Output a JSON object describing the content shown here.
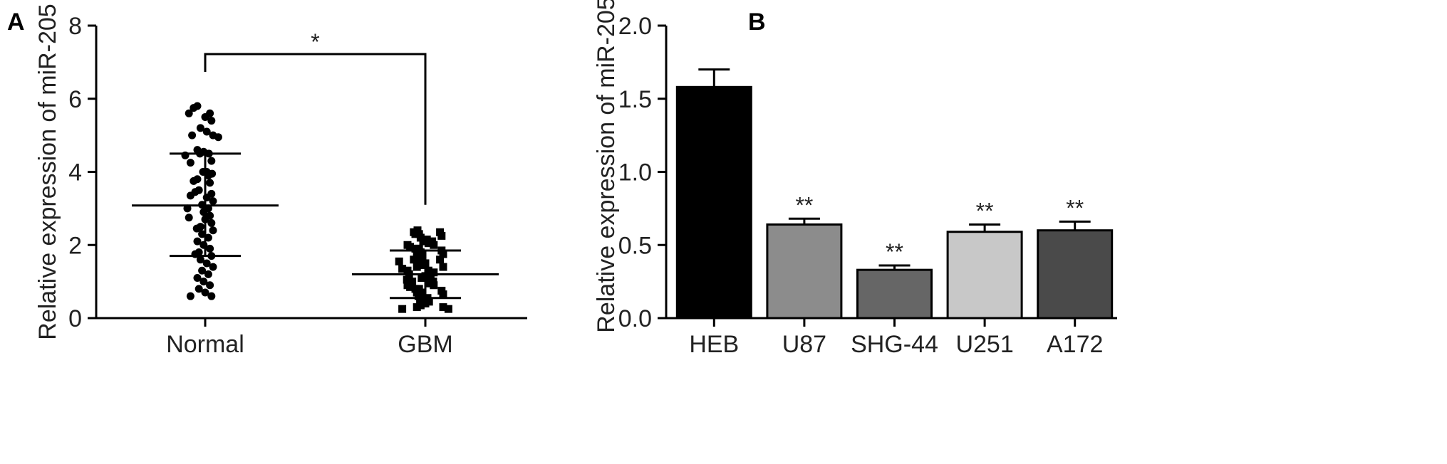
{
  "chart_data": [
    {
      "panel": "A",
      "type": "scatter",
      "ylabel": "Relative expression of miR-205",
      "ylim": [
        0,
        8
      ],
      "yticks": [
        "0",
        "2",
        "4",
        "6",
        "8"
      ],
      "categories": [
        "Normal",
        "GBM"
      ],
      "marker_shapes": [
        "circle",
        "square"
      ],
      "groups": [
        {
          "category": "Normal",
          "mean": 3.08,
          "sd_low": 1.7,
          "sd_high": 4.5,
          "points": [
            5.8,
            5.75,
            5.6,
            5.6,
            5.5,
            5.4,
            5.2,
            5.1,
            5.0,
            5.0,
            4.95,
            4.6,
            4.55,
            4.5,
            4.5,
            4.45,
            4.3,
            4.25,
            4.0,
            4.0,
            3.95,
            3.9,
            3.8,
            3.75,
            3.7,
            3.5,
            3.45,
            3.4,
            3.35,
            3.3,
            3.2,
            3.1,
            3.0,
            3.0,
            2.9,
            2.8,
            2.75,
            2.7,
            2.6,
            2.5,
            2.45,
            2.4,
            2.3,
            2.2,
            2.1,
            2.0,
            1.9,
            1.8,
            1.75,
            1.7,
            1.6,
            1.5,
            1.4,
            1.3,
            1.2,
            1.1,
            1.0,
            0.9,
            0.8,
            0.7,
            0.6,
            0.6
          ]
        },
        {
          "category": "GBM",
          "mean": 1.2,
          "sd_low": 0.55,
          "sd_high": 1.85,
          "points": [
            2.4,
            2.35,
            2.35,
            2.3,
            2.3,
            2.25,
            2.2,
            2.15,
            2.1,
            2.1,
            2.05,
            2.0,
            2.0,
            1.95,
            1.9,
            1.9,
            1.85,
            1.8,
            1.8,
            1.75,
            1.7,
            1.7,
            1.65,
            1.6,
            1.6,
            1.55,
            1.5,
            1.5,
            1.45,
            1.4,
            1.4,
            1.35,
            1.3,
            1.3,
            1.25,
            1.2,
            1.2,
            1.15,
            1.1,
            1.1,
            1.05,
            1.0,
            1.0,
            0.95,
            0.9,
            0.9,
            0.85,
            0.8,
            0.8,
            0.75,
            0.7,
            0.7,
            0.65,
            0.6,
            0.6,
            0.55,
            0.5,
            0.5,
            0.45,
            0.4,
            0.4,
            0.35,
            0.3,
            0.3,
            0.25,
            0.25
          ]
        }
      ],
      "annotations": [
        {
          "text": "*",
          "between": [
            "Normal",
            "GBM"
          ]
        }
      ]
    },
    {
      "panel": "B",
      "type": "bar",
      "ylabel": "Relative expression of miR-205",
      "ylim": [
        0,
        2.0
      ],
      "yticks": [
        "0.0",
        "0.5",
        "1.0",
        "1.5",
        "2.0"
      ],
      "categories": [
        "HEB",
        "U87",
        "SHG-44",
        "U251",
        "A172"
      ],
      "values": [
        1.58,
        0.64,
        0.33,
        0.59,
        0.6
      ],
      "errors": [
        0.12,
        0.04,
        0.03,
        0.05,
        0.06
      ],
      "bar_colors": [
        "#000000",
        "#8c8c8c",
        "#666666",
        "#c8c8c8",
        "#4a4a4a"
      ],
      "labels": [
        "",
        "**",
        "**",
        "**",
        "**"
      ]
    }
  ]
}
